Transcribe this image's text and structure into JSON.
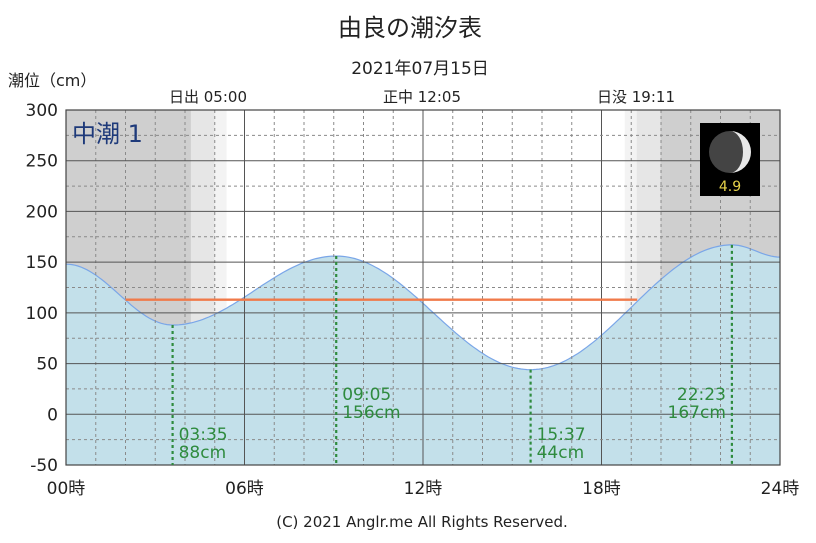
{
  "chart_data": {
    "type": "area",
    "title": "由良の潮汐表",
    "subtitle": "2021年07月15日",
    "ylabel": "潮位（cm）",
    "ylim": [
      -50,
      300
    ],
    "xlim": [
      0,
      24
    ],
    "y_ticks": [
      "300",
      "250",
      "200",
      "150",
      "100",
      "50",
      "0",
      "-50"
    ],
    "x_ticks": [
      "00時",
      "06時",
      "12時",
      "18時",
      "24時"
    ],
    "grid": true,
    "tide_name": "中潮 1",
    "moon_age": "4.9",
    "sun": {
      "sunrise_label": "日出 05:00",
      "noon_label": "正中 12:05",
      "sunset_label": "日没 19:11"
    },
    "mean_level": 113,
    "series": [
      {
        "values": [
          {
            "x": 0,
            "y": 148
          },
          {
            "x": 3.583,
            "y": 88
          },
          {
            "x": 9.083,
            "y": 156
          },
          {
            "x": 15.617,
            "y": 44
          },
          {
            "x": 22.383,
            "y": 167
          },
          {
            "x": 24,
            "y": 155
          }
        ]
      }
    ],
    "extremes": [
      {
        "time": "03:35",
        "level": "88cm",
        "x": 3.583,
        "y": 88
      },
      {
        "time": "09:05",
        "level": "156cm",
        "x": 9.083,
        "y": 156
      },
      {
        "time": "15:37",
        "level": "44cm",
        "x": 15.617,
        "y": 44
      },
      {
        "time": "22:23",
        "level": "167cm",
        "x": 22.383,
        "y": 167
      }
    ],
    "colors": {
      "fill": "#c3e0ea",
      "curve": "#7aa6e8",
      "mean_line": "#f07a4a",
      "marker": "#2e8b3e",
      "night": "#cfcfcf",
      "twilight": "#e6e6e6"
    }
  },
  "footer": "(C) 2021 Anglr.me All Rights Reserved."
}
